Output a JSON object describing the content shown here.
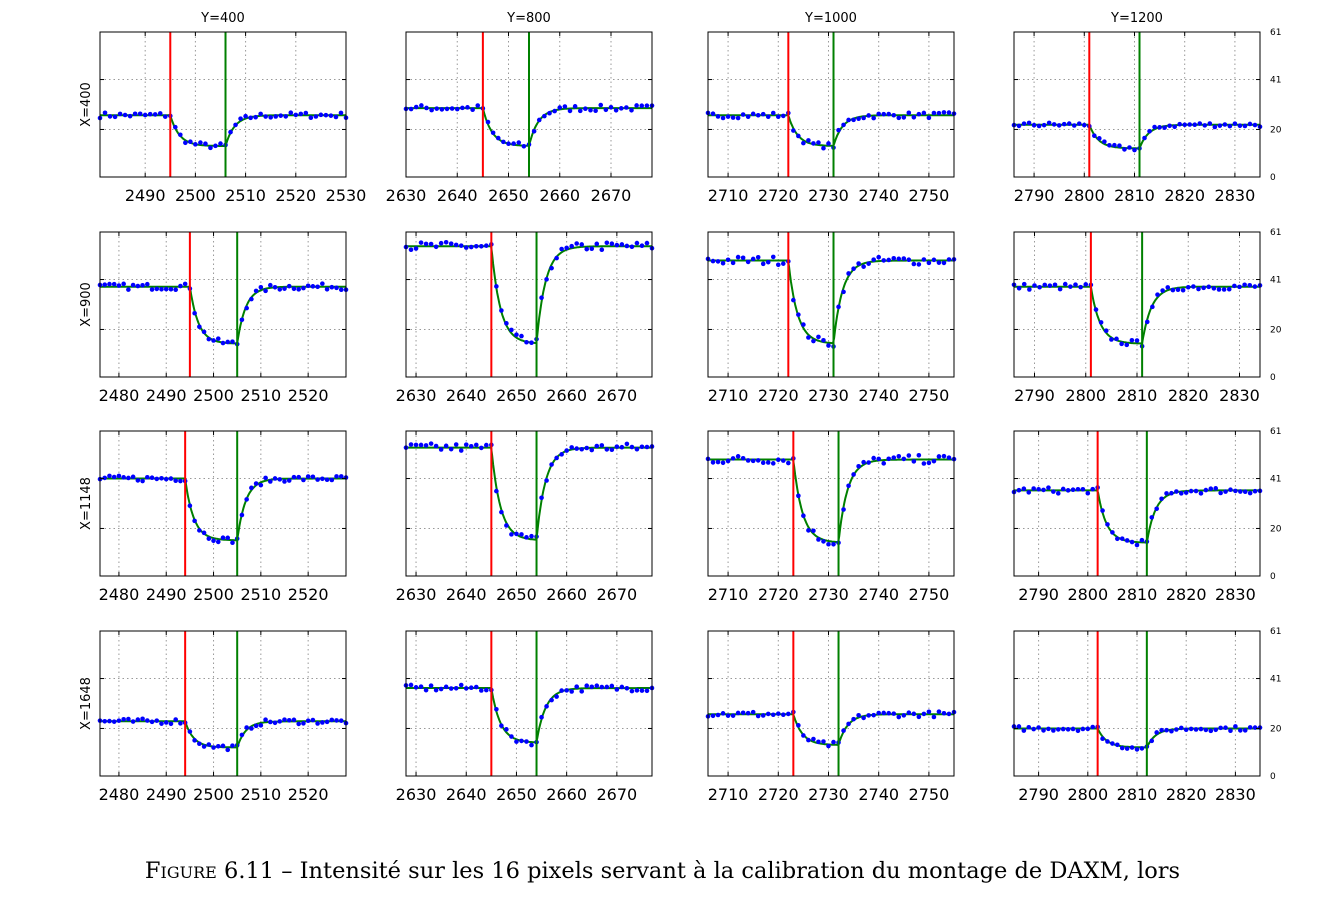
{
  "caption": {
    "label": "Figure 6.11",
    "text": "– Intensité sur les 16 pixels servant à la calibration du montage de DAXM, lors"
  },
  "colors": {
    "fit": "#008000",
    "points": "#0000ff",
    "left_edge": "#ff0000",
    "right_edge": "#008000",
    "grid": "#999999"
  },
  "chart_data": {
    "type": "scatter",
    "column_titles": [
      "Y=400",
      "Y=800",
      "Y=1000",
      "Y=1200"
    ],
    "row_labels": [
      "X=400",
      "X=900",
      "X=1148",
      "X=1648"
    ],
    "y_ticks": [
      0,
      20,
      41,
      61
    ],
    "ylim": [
      0,
      61
    ],
    "grid": true,
    "panels": [
      {
        "xlim": [
          2481,
          2530
        ],
        "xticks": [
          2490,
          2500,
          2510,
          2520,
          2530
        ],
        "red_x": 2495,
        "green_x": 2506,
        "high": 26,
        "low": 13,
        "noise": 1.2
      },
      {
        "xlim": [
          2630,
          2678
        ],
        "xticks": [
          2630,
          2640,
          2650,
          2660,
          2670
        ],
        "red_x": 2645,
        "green_x": 2654,
        "high": 29,
        "low": 13,
        "noise": 1.3
      },
      {
        "xlim": [
          2706,
          2755
        ],
        "xticks": [
          2710,
          2720,
          2730,
          2740,
          2750
        ],
        "red_x": 2722,
        "green_x": 2731,
        "high": 26,
        "low": 13,
        "noise": 1.2
      },
      {
        "xlim": [
          2786,
          2835
        ],
        "xticks": [
          2790,
          2800,
          2810,
          2820,
          2830
        ],
        "red_x": 2801,
        "green_x": 2811,
        "high": 22,
        "low": 12,
        "noise": 1.0
      },
      {
        "xlim": [
          2476,
          2528
        ],
        "xticks": [
          2480,
          2490,
          2500,
          2510,
          2520
        ],
        "red_x": 2495,
        "green_x": 2505,
        "high": 38,
        "low": 14,
        "noise": 1.3
      },
      {
        "xlim": [
          2628,
          2677
        ],
        "xticks": [
          2630,
          2640,
          2650,
          2660,
          2670
        ],
        "red_x": 2645,
        "green_x": 2654,
        "high": 55,
        "low": 14,
        "noise": 1.8
      },
      {
        "xlim": [
          2706,
          2755
        ],
        "xticks": [
          2710,
          2720,
          2730,
          2740,
          2750
        ],
        "red_x": 2722,
        "green_x": 2731,
        "high": 49,
        "low": 14,
        "noise": 1.8
      },
      {
        "xlim": [
          2786,
          2834
        ],
        "xticks": [
          2790,
          2800,
          2810,
          2820,
          2830
        ],
        "red_x": 2801,
        "green_x": 2811,
        "high": 38,
        "low": 14,
        "noise": 1.3
      },
      {
        "xlim": [
          2476,
          2528
        ],
        "xticks": [
          2480,
          2490,
          2500,
          2510,
          2520
        ],
        "red_x": 2494,
        "green_x": 2505,
        "high": 41,
        "low": 15,
        "noise": 1.2
      },
      {
        "xlim": [
          2628,
          2677
        ],
        "xticks": [
          2630,
          2640,
          2650,
          2660,
          2670
        ],
        "red_x": 2645,
        "green_x": 2654,
        "high": 54,
        "low": 15,
        "noise": 1.8
      },
      {
        "xlim": [
          2706,
          2755
        ],
        "xticks": [
          2710,
          2720,
          2730,
          2740,
          2750
        ],
        "red_x": 2723,
        "green_x": 2732,
        "high": 49,
        "low": 14,
        "noise": 1.8
      },
      {
        "xlim": [
          2785,
          2835
        ],
        "xticks": [
          2790,
          2800,
          2810,
          2820,
          2830
        ],
        "red_x": 2802,
        "green_x": 2812,
        "high": 36,
        "low": 14,
        "noise": 1.3
      },
      {
        "xlim": [
          2476,
          2528
        ],
        "xticks": [
          2480,
          2490,
          2500,
          2510,
          2520
        ],
        "red_x": 2494,
        "green_x": 2505,
        "high": 23,
        "low": 12,
        "noise": 1.1
      },
      {
        "xlim": [
          2628,
          2677
        ],
        "xticks": [
          2630,
          2640,
          2650,
          2660,
          2670
        ],
        "red_x": 2645,
        "green_x": 2654,
        "high": 37,
        "low": 14,
        "noise": 1.3
      },
      {
        "xlim": [
          2706,
          2755
        ],
        "xticks": [
          2710,
          2720,
          2730,
          2740,
          2750
        ],
        "red_x": 2723,
        "green_x": 2732,
        "high": 26,
        "low": 13,
        "noise": 1.2
      },
      {
        "xlim": [
          2785,
          2835
        ],
        "xticks": [
          2790,
          2800,
          2810,
          2820,
          2830
        ],
        "red_x": 2802,
        "green_x": 2812,
        "high": 20,
        "low": 12,
        "noise": 1.0
      }
    ]
  }
}
